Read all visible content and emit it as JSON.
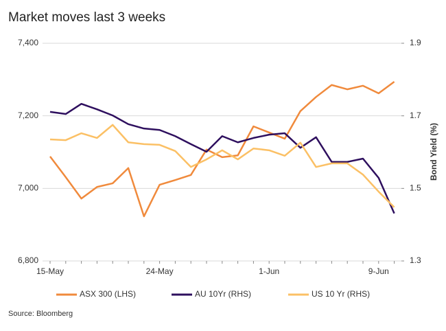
{
  "chart_data": {
    "type": "line",
    "title": "Market moves last 3 weeks",
    "y2_label": "Bond Yield (%)",
    "source": "Source: Bloomberg",
    "categories": [
      "15-May",
      null,
      null,
      null,
      null,
      null,
      null,
      "24-May",
      null,
      null,
      null,
      null,
      null,
      null,
      "1-Jun",
      null,
      null,
      null,
      null,
      null,
      null,
      "9-Jun",
      null
    ],
    "ylim": [
      6800,
      7400
    ],
    "yticks": [
      {
        "value": 6800,
        "label": "6,800"
      },
      {
        "value": 7000,
        "label": "7,000"
      },
      {
        "value": 7200,
        "label": "7,200"
      },
      {
        "value": 7400,
        "label": "7,400"
      }
    ],
    "y2lim": [
      1.3,
      1.9
    ],
    "y2ticks": [
      1.3,
      1.5,
      1.7,
      1.9
    ],
    "grid": true,
    "legend": "bottom",
    "series": [
      {
        "name": "ASX 300 (LHS)",
        "color": "#f08a3c",
        "values": [
          7088,
          7031,
          6972,
          7004,
          7014,
          7056,
          6923,
          7010,
          7023,
          7037,
          7107,
          7086,
          7091,
          7171,
          7154,
          7137,
          7213,
          7252,
          7285,
          7273,
          7283,
          7262,
          7294
        ]
      },
      {
        "name": "AU 10Yr (RHS)",
        "color": "#2e0f5e",
        "axis": "y2",
        "values": [
          1.711,
          1.705,
          1.733,
          1.718,
          1.701,
          1.677,
          1.665,
          1.661,
          1.644,
          1.622,
          1.601,
          1.644,
          1.627,
          1.639,
          1.648,
          1.652,
          1.612,
          1.641,
          1.573,
          1.573,
          1.582,
          1.529,
          1.431
        ]
      },
      {
        "name": "US 10 Yr (RHS)",
        "color": "#fbc065",
        "axis": "y2",
        "values": [
          1.635,
          1.633,
          1.652,
          1.639,
          1.675,
          1.627,
          1.622,
          1.62,
          1.603,
          1.559,
          1.58,
          1.605,
          1.58,
          1.61,
          1.605,
          1.59,
          1.626,
          1.559,
          1.569,
          1.569,
          1.538,
          1.491,
          1.448
        ]
      }
    ]
  }
}
